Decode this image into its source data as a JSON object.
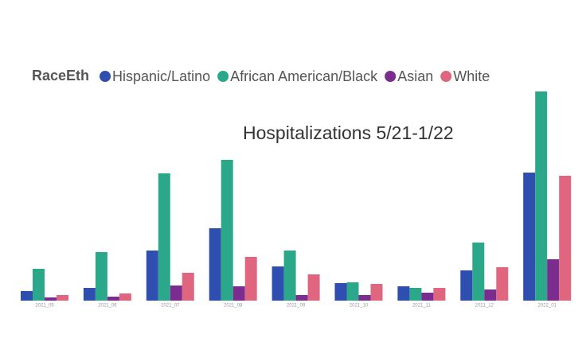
{
  "chart_data": {
    "type": "bar",
    "title": "Hospitalizations 5/21-1/22",
    "legend_title": "RaceEth",
    "categories": [
      "2021_05",
      "2021_06",
      "2021_07",
      "2021_08",
      "2021_09",
      "2021_10",
      "2021_11",
      "2021_12",
      "2022_01"
    ],
    "series": [
      {
        "name": "Hispanic/Latino",
        "color": "#2e4fb0",
        "values": [
          12,
          16,
          63,
          91,
          43,
          22,
          18,
          38,
          161
        ]
      },
      {
        "name": "African American/Black",
        "color": "#2aa889",
        "values": [
          40,
          61,
          160,
          177,
          63,
          23,
          16,
          73,
          263
        ]
      },
      {
        "name": "Asian",
        "color": "#7a2d8f",
        "values": [
          4,
          5,
          19,
          18,
          7,
          7,
          10,
          14,
          52
        ]
      },
      {
        "name": "White",
        "color": "#e0657e",
        "values": [
          7,
          9,
          35,
          55,
          33,
          21,
          16,
          42,
          157
        ]
      }
    ]
  }
}
